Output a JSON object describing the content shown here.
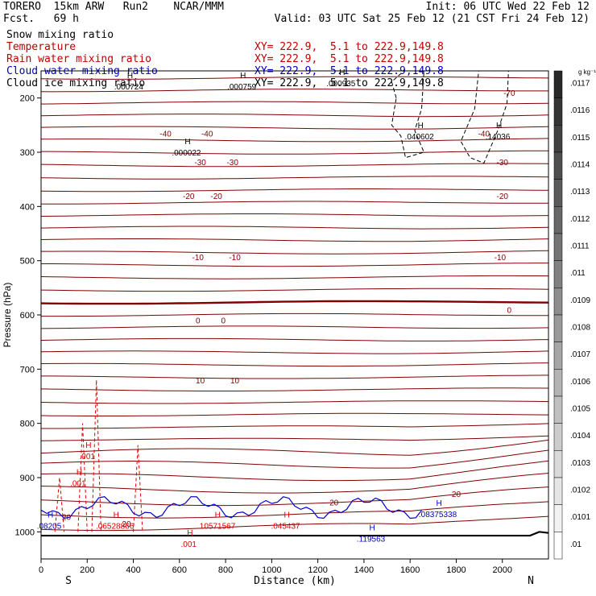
{
  "header": {
    "model": "TORERO  15km ARW   Run2    NCAR/MMM",
    "init": "Init: 06 UTC Wed 22 Feb 12",
    "fcst": "Fcst.   69 h",
    "valid": "Valid: 03 UTC Sat 25 Feb 12 (21 CST Fri 24 Feb 12)"
  },
  "fields": [
    {
      "name": "Snow mixing ratio",
      "xy": "",
      "color": "#000000"
    },
    {
      "name": "Temperature",
      "xy": "XY= 222.9,  5.1 to 222.9,149.8",
      "color": "#c00000"
    },
    {
      "name": "Rain water mixing ratio",
      "xy": "XY= 222.9,  5.1 to 222.9,149.8",
      "color": "#c00000"
    },
    {
      "name": "Cloud water mixing ratio",
      "xy": "XY= 222.9,  5.1 to 222.9,149.8",
      "color": "#0000c0"
    },
    {
      "name": "Cloud ice mixing ratio",
      "xy": "XY= 222.9,  5.1 to 222.9,149.8",
      "color": "#000000"
    }
  ],
  "colors": {
    "temperature": "#800000",
    "rain": "#e00000",
    "cloud_water": "#0000cc",
    "ice": "#000000",
    "terrain": "#000000"
  },
  "chart_data": {
    "type": "cross-section",
    "xlabel": "Distance (km)",
    "ylabel": "Pressure (hPa)",
    "xlim": [
      0,
      2200
    ],
    "ylim": [
      1050,
      150
    ],
    "x_ticks": [
      0,
      200,
      400,
      600,
      800,
      1000,
      1200,
      1400,
      1600,
      1800,
      2000
    ],
    "y_ticks": [
      200,
      300,
      400,
      500,
      600,
      700,
      800,
      900,
      1000
    ],
    "endpoints": {
      "left": "S",
      "right": "N"
    },
    "colorbar": {
      "unit": "g kg⁻¹",
      "labels": [
        ".0117",
        ".0116",
        ".0115",
        ".0114",
        ".0113",
        ".0112",
        ".0111",
        ".011",
        ".0109",
        ".0108",
        ".0107",
        ".0106",
        ".0105",
        ".0104",
        ".0103",
        ".0102",
        ".0101",
        ".01"
      ]
    },
    "temperature_contour_labels": [
      {
        "value": "-70",
        "x": 2030,
        "p": 190
      },
      {
        "value": "-40",
        "x": 540,
        "p": 265
      },
      {
        "value": "-40",
        "x": 720,
        "p": 265
      },
      {
        "value": "-40",
        "x": 1920,
        "p": 265
      },
      {
        "value": "-30",
        "x": 690,
        "p": 318
      },
      {
        "value": "-30",
        "x": 830,
        "p": 318
      },
      {
        "value": "-30",
        "x": 2000,
        "p": 318
      },
      {
        "value": "-20",
        "x": 640,
        "p": 380
      },
      {
        "value": "-20",
        "x": 760,
        "p": 380
      },
      {
        "value": "-20",
        "x": 2000,
        "p": 380
      },
      {
        "value": "-10",
        "x": 680,
        "p": 493
      },
      {
        "value": "-10",
        "x": 840,
        "p": 493
      },
      {
        "value": "-10",
        "x": 1990,
        "p": 493
      },
      {
        "value": "0",
        "x": 680,
        "p": 610
      },
      {
        "value": "0",
        "x": 790,
        "p": 610
      },
      {
        "value": "0",
        "x": 2030,
        "p": 590
      },
      {
        "value": "10",
        "x": 690,
        "p": 720
      },
      {
        "value": "10",
        "x": 840,
        "p": 720
      },
      {
        "value": "20",
        "x": 1270,
        "p": 945
      },
      {
        "value": "20",
        "x": 1800,
        "p": 930
      },
      {
        "value": "20",
        "x": 110,
        "p": 972
      },
      {
        "value": "20",
        "x": 370,
        "p": 985
      }
    ],
    "maxima_labels": [
      {
        "text": ".000724",
        "x": 380,
        "p": 178,
        "color": "#000000"
      },
      {
        "text": ".000759",
        "x": 870,
        "p": 178,
        "color": "#000000"
      },
      {
        "text": ".000935",
        "x": 1300,
        "p": 172,
        "color": "#000000"
      },
      {
        "text": ".000022",
        "x": 630,
        "p": 300,
        "color": "#000000"
      },
      {
        "text": ".040602",
        "x": 1640,
        "p": 270,
        "color": "#000000"
      },
      {
        "text": ".14036",
        "x": 1980,
        "p": 270,
        "color": "#000000"
      },
      {
        "text": ".001",
        "x": 200,
        "p": 860,
        "color": "#e00000"
      },
      {
        "text": ".001",
        "x": 160,
        "p": 910,
        "color": "#e00000"
      },
      {
        "text": ".001",
        "x": 640,
        "p": 1022,
        "color": "#e00000"
      },
      {
        "text": ".08205",
        "x": 35,
        "p": 988,
        "color": "#0000cc"
      },
      {
        "text": ".06528866",
        "x": 320,
        "p": 988,
        "color": "#e00000"
      },
      {
        "text": ".10571567",
        "x": 760,
        "p": 988,
        "color": "#e00000"
      },
      {
        "text": ".045437",
        "x": 1060,
        "p": 988,
        "color": "#e00000"
      },
      {
        "text": ".119563",
        "x": 1430,
        "p": 1012,
        "color": "#0000cc"
      },
      {
        "text": ".08375338",
        "x": 1720,
        "p": 967,
        "color": "#0000cc"
      }
    ]
  }
}
